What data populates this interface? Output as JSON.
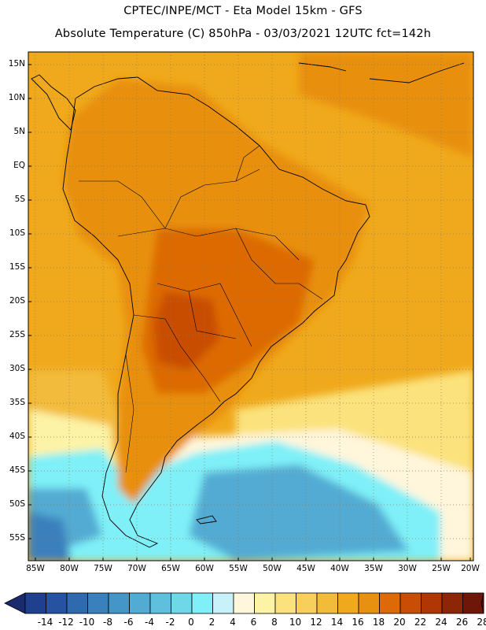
{
  "header": {
    "line1": "CPTEC/INPE/MCT -  Eta Model 15km - GFS",
    "line2": "Absolute Temperature (C) 850hPa - 03/03/2021 12UTC fct=142h"
  },
  "map": {
    "lat_labels": [
      "15N",
      "10N",
      "5N",
      "EQ",
      "5S",
      "10S",
      "15S",
      "20S",
      "25S",
      "30S",
      "35S",
      "40S",
      "45S",
      "50S",
      "55S"
    ],
    "lon_labels": [
      "85W",
      "80W",
      "75W",
      "70W",
      "65W",
      "60W",
      "55W",
      "50W",
      "45W",
      "40W",
      "35W",
      "30W",
      "25W",
      "20W"
    ]
  },
  "colorbar": {
    "labels": [
      "-14",
      "-12",
      "-10",
      "-8",
      "-6",
      "-4",
      "-2",
      "0",
      "2",
      "4",
      "6",
      "8",
      "10",
      "12",
      "14",
      "16",
      "18",
      "20",
      "22",
      "24",
      "26",
      "28"
    ],
    "colors": [
      "#1f3f8f",
      "#2553a1",
      "#2f6aaf",
      "#3a80bd",
      "#4596c8",
      "#52abd3",
      "#5fc0de",
      "#6fd8e8",
      "#7ff0f8",
      "#c8f2fa",
      "#fff6dc",
      "#fdf3a6",
      "#fbe27c",
      "#f8cf5a",
      "#f3bb3a",
      "#f0a91c",
      "#e8900f",
      "#dd6a06",
      "#c94d04",
      "#b03704",
      "#8d2607",
      "#6e1608"
    ],
    "arrow_low": "#1a2a6c",
    "arrow_high": "#5c0010"
  },
  "regions": {
    "ocean_warm": "#f0a91c",
    "ocean_mid": "#f3bb3a",
    "land_hot": "#e8900f",
    "land_hotter": "#dd6a06",
    "cool_pale": "#fdf3a6",
    "cold_cyan": "#7ff0f8",
    "cold_blue": "#52abd3",
    "coast": "#000000"
  }
}
